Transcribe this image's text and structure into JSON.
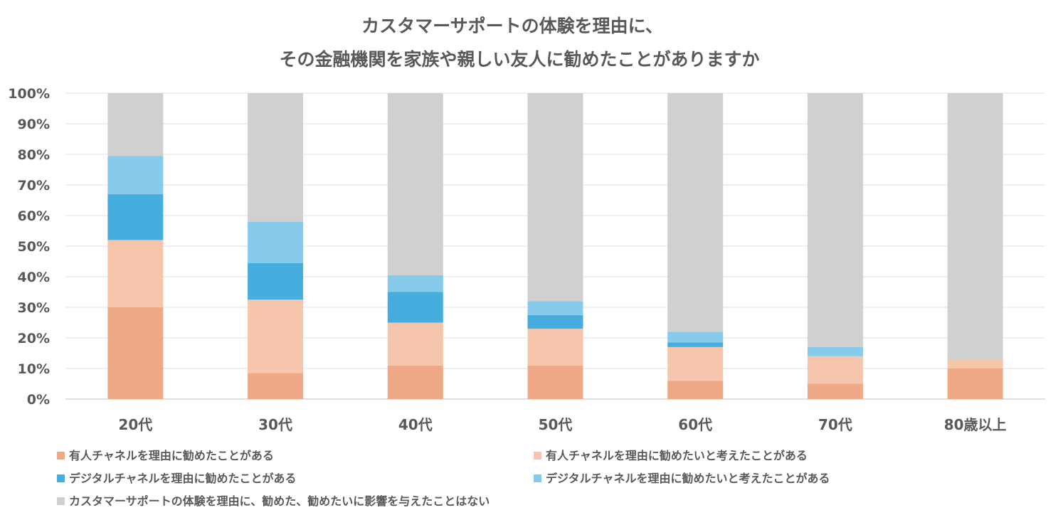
{
  "chart_data": {
    "type": "bar",
    "stacked": true,
    "percent_stacked": true,
    "title_lines": [
      "カスタマーサポートの体験を理由に、",
      "その金融機関を家族や親しい友人に勧めたことがありますか"
    ],
    "categories": [
      "20代",
      "30代",
      "40代",
      "50代",
      "60代",
      "70代",
      "80歳以上"
    ],
    "ylim": [
      0,
      100
    ],
    "yticks": [
      "0%",
      "10%",
      "20%",
      "30%",
      "40%",
      "50%",
      "60%",
      "70%",
      "80%",
      "90%",
      "100%"
    ],
    "grid": true,
    "legend_position": "bottom",
    "series": [
      {
        "name": "有人チャネルを理由に勧めたことがある",
        "color": "#F0A986",
        "values": [
          30,
          8.5,
          11,
          11,
          6,
          5,
          10
        ]
      },
      {
        "name": "有人チャネルを理由に勧めたいと考えたことがある",
        "color": "#F5C6AC",
        "values": [
          22,
          24,
          14,
          12,
          11,
          9,
          3
        ]
      },
      {
        "name": "デジタルチャネルを理由に勧めたことがある",
        "color": "#46AEDE",
        "values": [
          15,
          12,
          10,
          4.5,
          1.5,
          0,
          0
        ]
      },
      {
        "name": "デジタルチャネルを理由に勧めたいと考えたことがある",
        "color": "#86CBEB",
        "values": [
          12.5,
          13.5,
          5.5,
          4.5,
          3.5,
          3,
          0
        ]
      },
      {
        "name": "カスタマーサポートの体験を理由に、勧めた、勧めたいに影響を与えたことはない",
        "color": "#D0D0D0",
        "values": [
          20.5,
          42,
          59.5,
          68,
          78,
          83,
          87
        ]
      }
    ]
  }
}
